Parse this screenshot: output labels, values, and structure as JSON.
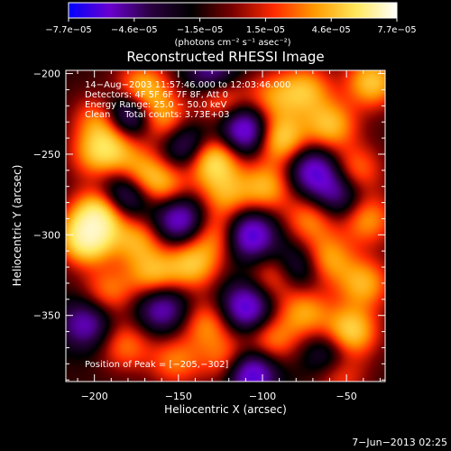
{
  "chart_data": {
    "type": "heatmap",
    "title": "Reconstructed RHESSI Image",
    "xlabel": "Heliocentric X (arcsec)",
    "ylabel": "Heliocentric Y (arcsec)",
    "xlim": [
      -217,
      -27
    ],
    "ylim": [
      -391,
      -198
    ],
    "x_ticks": [
      -200,
      -150,
      -100,
      -50
    ],
    "y_ticks": [
      -200,
      -250,
      -300,
      -350
    ],
    "x_tick_labels": [
      "−200",
      "−150",
      "−100",
      "−50"
    ],
    "y_tick_labels": [
      "−200",
      "−250",
      "−300",
      "−350"
    ],
    "colorbar": {
      "range": [
        -7.7e-05,
        7.7e-05
      ],
      "tick_labels": [
        "−7.7e−05",
        "−4.6e−05",
        "−1.5e−05",
        "1.5e−05",
        "4.6e−05",
        "7.7e−05"
      ],
      "unit_label": "(photons cm⁻² s⁻¹ asec⁻²)",
      "colormap": [
        "#0000ff",
        "#6a00d0",
        "#2a0040",
        "#000000",
        "#7a0000",
        "#ff2a00",
        "#ff9a00",
        "#ffe85a",
        "#ffffff"
      ]
    },
    "annotations": {
      "time": "14−Aug−2003 11:57:46.000 to 12:03:46.000",
      "detectors": "Detectors: 4F 5F 6F 7F 8F, Att 0",
      "energy": "Energy Range: 25.0 − 50.0 keV",
      "clean": "Clean     Total counts: 3.73E+03",
      "peak": "Position of Peak = [−205,−302]"
    },
    "peak": {
      "x": -205,
      "y": -302
    },
    "blobs": [
      {
        "x": -205,
        "y": -302,
        "v": 1.0
      },
      {
        "x": -197,
        "y": -286,
        "v": 0.85
      },
      {
        "x": -192,
        "y": -335,
        "v": 0.45
      },
      {
        "x": -200,
        "y": -250,
        "v": 0.45
      },
      {
        "x": -196,
        "y": -228,
        "v": 0.55
      },
      {
        "x": -188,
        "y": -245,
        "v": 0.5
      },
      {
        "x": -172,
        "y": -210,
        "v": 0.75
      },
      {
        "x": -160,
        "y": -228,
        "v": 0.6
      },
      {
        "x": -172,
        "y": -262,
        "v": 0.55
      },
      {
        "x": -158,
        "y": -270,
        "v": 0.5
      },
      {
        "x": -130,
        "y": -253,
        "v": 0.9
      },
      {
        "x": -125,
        "y": -215,
        "v": 0.55
      },
      {
        "x": -175,
        "y": -303,
        "v": 0.55
      },
      {
        "x": -165,
        "y": -325,
        "v": 0.6
      },
      {
        "x": -142,
        "y": -318,
        "v": 0.65
      },
      {
        "x": -127,
        "y": -300,
        "v": 0.5
      },
      {
        "x": -122,
        "y": -275,
        "v": 0.5
      },
      {
        "x": -133,
        "y": -355,
        "v": 0.5
      },
      {
        "x": -120,
        "y": -378,
        "v": 0.55
      },
      {
        "x": -152,
        "y": -378,
        "v": 0.45
      },
      {
        "x": -182,
        "y": -368,
        "v": 0.45
      },
      {
        "x": -98,
        "y": -270,
        "v": 0.6
      },
      {
        "x": -90,
        "y": -240,
        "v": 0.8
      },
      {
        "x": -95,
        "y": -215,
        "v": 0.45
      },
      {
        "x": -75,
        "y": -210,
        "v": 0.6
      },
      {
        "x": -60,
        "y": -232,
        "v": 0.65
      },
      {
        "x": -72,
        "y": -290,
        "v": 0.5
      },
      {
        "x": -92,
        "y": -325,
        "v": 0.55
      },
      {
        "x": -62,
        "y": -315,
        "v": 0.6
      },
      {
        "x": -75,
        "y": -348,
        "v": 0.55
      },
      {
        "x": -95,
        "y": -365,
        "v": 0.5
      },
      {
        "x": -48,
        "y": -360,
        "v": 0.8
      },
      {
        "x": -40,
        "y": -330,
        "v": 0.6
      },
      {
        "x": -38,
        "y": -290,
        "v": 0.55
      },
      {
        "x": -45,
        "y": -260,
        "v": 0.5
      },
      {
        "x": -35,
        "y": -205,
        "v": 0.7
      },
      {
        "x": -55,
        "y": -385,
        "v": 0.5
      },
      {
        "x": -180,
        "y": -225,
        "v": -0.9
      },
      {
        "x": -182,
        "y": -275,
        "v": -0.7
      },
      {
        "x": -150,
        "y": -290,
        "v": -0.75
      },
      {
        "x": -145,
        "y": -245,
        "v": -0.6
      },
      {
        "x": -110,
        "y": -235,
        "v": -0.9
      },
      {
        "x": -108,
        "y": -300,
        "v": -0.85
      },
      {
        "x": -110,
        "y": -345,
        "v": -0.8
      },
      {
        "x": -108,
        "y": -385,
        "v": -0.95
      },
      {
        "x": -160,
        "y": -345,
        "v": -0.65
      },
      {
        "x": -205,
        "y": -355,
        "v": -0.6
      },
      {
        "x": -70,
        "y": -260,
        "v": -0.7
      },
      {
        "x": -80,
        "y": -320,
        "v": -0.6
      },
      {
        "x": -55,
        "y": -275,
        "v": -0.55
      },
      {
        "x": -130,
        "y": -200,
        "v": -0.6
      },
      {
        "x": -60,
        "y": -375,
        "v": -0.55
      }
    ]
  },
  "footer": {
    "date": "7−Jun−2013 02:25"
  }
}
